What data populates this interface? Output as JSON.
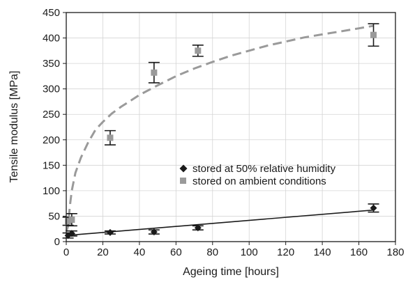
{
  "chart_data": {
    "type": "scatter",
    "xlabel": "Ageing time [hours]",
    "ylabel": "Tensile modulus [MPa]",
    "xlim": [
      0,
      180
    ],
    "ylim": [
      0,
      450
    ],
    "xticks": [
      0,
      20,
      40,
      60,
      80,
      100,
      120,
      140,
      160,
      180
    ],
    "yticks": [
      0,
      50,
      100,
      150,
      200,
      250,
      300,
      350,
      400,
      450
    ],
    "grid": true,
    "legend_position": "lower-right",
    "series": [
      {
        "name": "stored at 50% relative humidity",
        "marker": "diamond",
        "color": "#1a1a1a",
        "points": [
          {
            "x": 1,
            "y": 12,
            "err": 5
          },
          {
            "x": 3,
            "y": 16,
            "err": 5
          },
          {
            "x": 24,
            "y": 18,
            "err": 3
          },
          {
            "x": 48,
            "y": 19,
            "err": 4
          },
          {
            "x": 72,
            "y": 27,
            "err": 4
          },
          {
            "x": 168,
            "y": 66,
            "err": 8
          }
        ],
        "fit": {
          "style": "solid",
          "x": [
            0,
            168
          ],
          "y": [
            12,
            62
          ]
        }
      },
      {
        "name": "stored on ambient conditions",
        "marker": "square",
        "color": "#9a9a9a",
        "points": [
          {
            "x": 1,
            "y": 40,
            "err": 8
          },
          {
            "x": 3,
            "y": 43,
            "err": 12
          },
          {
            "x": 24,
            "y": 204,
            "err": 14
          },
          {
            "x": 48,
            "y": 332,
            "err": 20
          },
          {
            "x": 72,
            "y": 375,
            "err": 11
          },
          {
            "x": 168,
            "y": 406,
            "err": 22
          }
        ],
        "fit": {
          "style": "dashed",
          "x": [
            0,
            1,
            2,
            3,
            5,
            8,
            12,
            16,
            20,
            25,
            30,
            40,
            50,
            60,
            70,
            80,
            90,
            100,
            110,
            120,
            130,
            140,
            150,
            160,
            168
          ],
          "y": [
            20,
            30,
            70,
            100,
            135,
            165,
            195,
            220,
            235,
            252,
            265,
            288,
            307,
            325,
            340,
            353,
            365,
            375,
            385,
            393,
            401,
            407,
            413,
            419,
            424
          ]
        }
      }
    ]
  }
}
